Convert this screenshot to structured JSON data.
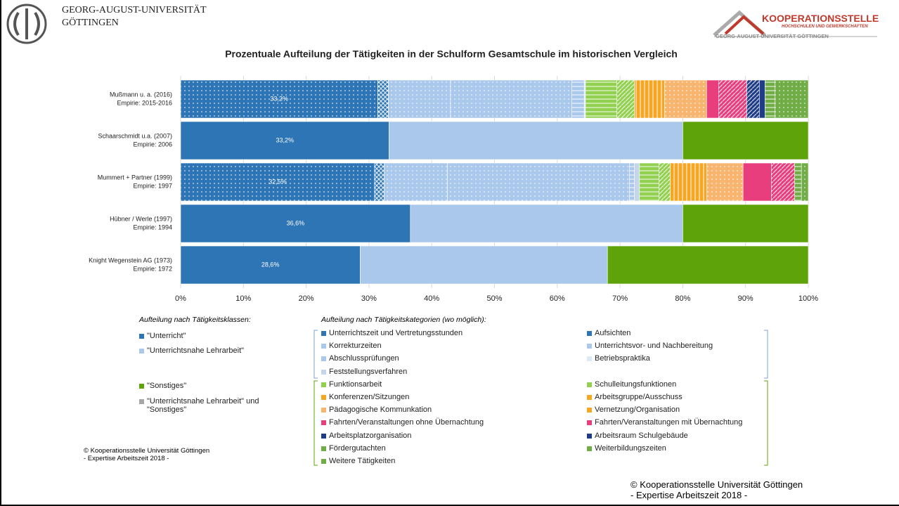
{
  "header": {
    "university": [
      "GEORG-AUGUST-UNIVERSITÄT",
      "GÖTTINGEN"
    ],
    "partner": [
      "KOOPERATIONSSTELLE",
      "HOCHSCHULEN UND GEWERKSCHAFTEN",
      "GEORG-AUGUST-UNIVERSITÄT GÖTTINGEN"
    ]
  },
  "chart_data": {
    "type": "stacked_bar_horizontal",
    "title": "Prozentuale Aufteilung der Tätigkeiten in der Schulform Gesamtschule im historischen Vergleich",
    "categories": [
      "Mußmann u. a. (2016)",
      "Schaarschmidt u.a. (2007)",
      "Mummert + Partner (1999)",
      "Hübner / Werle (1997)",
      "Knight Wegenstein AG (1973)"
    ],
    "subcategories": [
      "Empirie: 2015-2016",
      "Empirie: 2006",
      "Empirie: 1997",
      "Empirie: 1994",
      "Empirie: 1972"
    ],
    "segment_labels": [
      "33,2%",
      "33,2%",
      "32,5%",
      "36,6%",
      "28,6%"
    ],
    "xlim": [
      0,
      100
    ],
    "xticks": [
      {
        "value": 0,
        "label": "0%"
      },
      {
        "value": 10,
        "label": "10%"
      },
      {
        "value": 20,
        "label": "20%"
      },
      {
        "value": 30,
        "label": "30%"
      },
      {
        "value": 40,
        "label": "40%"
      },
      {
        "value": 50,
        "label": "50%"
      },
      {
        "value": 60,
        "label": "60%"
      },
      {
        "value": 70,
        "label": "70%"
      },
      {
        "value": 80,
        "label": "80%"
      },
      {
        "value": 90,
        "label": "90%"
      },
      {
        "value": 100,
        "label": "100%"
      }
    ],
    "grid": true,
    "category_legend_title": "Aufteilung nach Tätigkeitskategorien (wo möglich):",
    "category_series": [
      {
        "name": "Unterrichtszeit und Vertretungsstunden",
        "color": "#2e75b6",
        "pattern": "dots",
        "values": [
          31.4,
          null,
          30.9,
          null,
          null
        ]
      },
      {
        "name": "Aufsichten",
        "color": "#2e75b6",
        "pattern": "cross",
        "values": [
          1.7,
          null,
          1.5,
          null,
          null
        ]
      },
      {
        "name": "Korrekturzeiten",
        "color": "#a9c8eb",
        "pattern": "dots",
        "values": [
          9.9,
          null,
          10.1,
          null,
          null
        ]
      },
      {
        "name": "Unterrichtsvor- und Nachbereitung",
        "color": "#a9c8eb",
        "pattern": "dots",
        "values": [
          19.3,
          null,
          29.0,
          null,
          null
        ]
      },
      {
        "name": "Abschlussprüfungen",
        "color": "#a9c8eb",
        "pattern": "hstripes",
        "values": [
          2.0,
          null,
          0.8,
          null,
          null
        ]
      },
      {
        "name": "Betriebspraktika",
        "color": "#dce9f7",
        "pattern": "solid",
        "values": [
          0.2,
          null,
          null,
          null,
          null
        ]
      },
      {
        "name": "Feststellungsverfahren",
        "color": "#c5d6ea",
        "pattern": "solid",
        "values": [
          null,
          null,
          0.8,
          null,
          null
        ]
      },
      {
        "name": "Funktionsarbeit",
        "color": "#92d050",
        "pattern": "hstripes",
        "values": [
          5.0,
          null,
          3.1,
          null,
          null
        ]
      },
      {
        "name": "Schulleitungsfunktionen",
        "color": "#92d050",
        "pattern": "diag",
        "values": [
          2.8,
          null,
          1.8,
          null,
          null
        ]
      },
      {
        "name": "Konferenzen/Sitzungen",
        "color": "#f5a623",
        "pattern": "vstripes",
        "values": [
          4.8,
          null,
          5.8,
          null,
          null
        ]
      },
      {
        "name": "Arbeitsgruppe/Ausschuss",
        "color": "#f5a623",
        "pattern": "dots",
        "values": [
          null,
          null,
          null,
          null,
          null
        ]
      },
      {
        "name": "Pädagogische Kommunkation",
        "color": "#f8b570",
        "pattern": "dots",
        "values": [
          6.7,
          null,
          5.8,
          null,
          null
        ]
      },
      {
        "name": "Vernetzung/Organisation",
        "color": "#f5a623",
        "pattern": "solid",
        "values": [
          null,
          null,
          null,
          null,
          null
        ]
      },
      {
        "name": "Fahrten/Veranstaltungen ohne Übernachtung",
        "color": "#e83e7e",
        "pattern": "solid",
        "values": [
          1.9,
          null,
          4.5,
          null,
          null
        ]
      },
      {
        "name": "Fahrten/Veranstaltungen mit Übernachtung",
        "color": "#e83e7e",
        "pattern": "diag",
        "values": [
          4.5,
          null,
          3.7,
          null,
          null
        ]
      },
      {
        "name": "Arbeitsplatzorganisation",
        "color": "#1f3c88",
        "pattern": "diag",
        "values": [
          2.0,
          null,
          null,
          null,
          null
        ]
      },
      {
        "name": "Arbeitsraum Schulgebäude",
        "color": "#1f3c88",
        "pattern": "solid",
        "values": [
          0.9,
          null,
          null,
          null,
          null
        ]
      },
      {
        "name": "Fördergutachten",
        "color": "#70ad47",
        "pattern": "hstripes",
        "values": [
          1.6,
          null,
          1.1,
          null,
          null
        ]
      },
      {
        "name": "Weiterbildungszeiten",
        "color": "#70ad47",
        "pattern": "dots",
        "values": [
          5.3,
          null,
          1.1,
          null,
          null
        ]
      },
      {
        "name": "Weitere Tätigkeiten",
        "color": "#70ad47",
        "pattern": "cross",
        "values": [
          null,
          null,
          null,
          null,
          null
        ]
      }
    ],
    "class_legend_title": "Aufteilung nach Tätigkeitsklassen:",
    "class_series": [
      {
        "name": "\"Unterricht\"",
        "color": "#2e75b6",
        "pattern": "solid",
        "values": [
          null,
          33.2,
          null,
          36.6,
          28.6
        ]
      },
      {
        "name": "\"Unterrichtsnahe Lehrarbeit\"",
        "color": "#a9c8eb",
        "pattern": "solid",
        "values": [
          null,
          46.8,
          null,
          43.4,
          39.4
        ]
      },
      {
        "name": "\"Sonstiges\"",
        "color": "#5fa30a",
        "pattern": "solid",
        "values": [
          null,
          20.0,
          null,
          20.0,
          32.0
        ]
      },
      {
        "name": "\"Unterrichtsnahe Lehrarbeit\" und \"Sonstiges\"",
        "color": "#a6a6a6",
        "pattern": "solid",
        "values": [
          null,
          null,
          null,
          null,
          null
        ]
      }
    ]
  },
  "footer": [
    "© Kooperationsstelle Universität Göttingen",
    "- Expertise Arbeitszeit 2018 -"
  ]
}
